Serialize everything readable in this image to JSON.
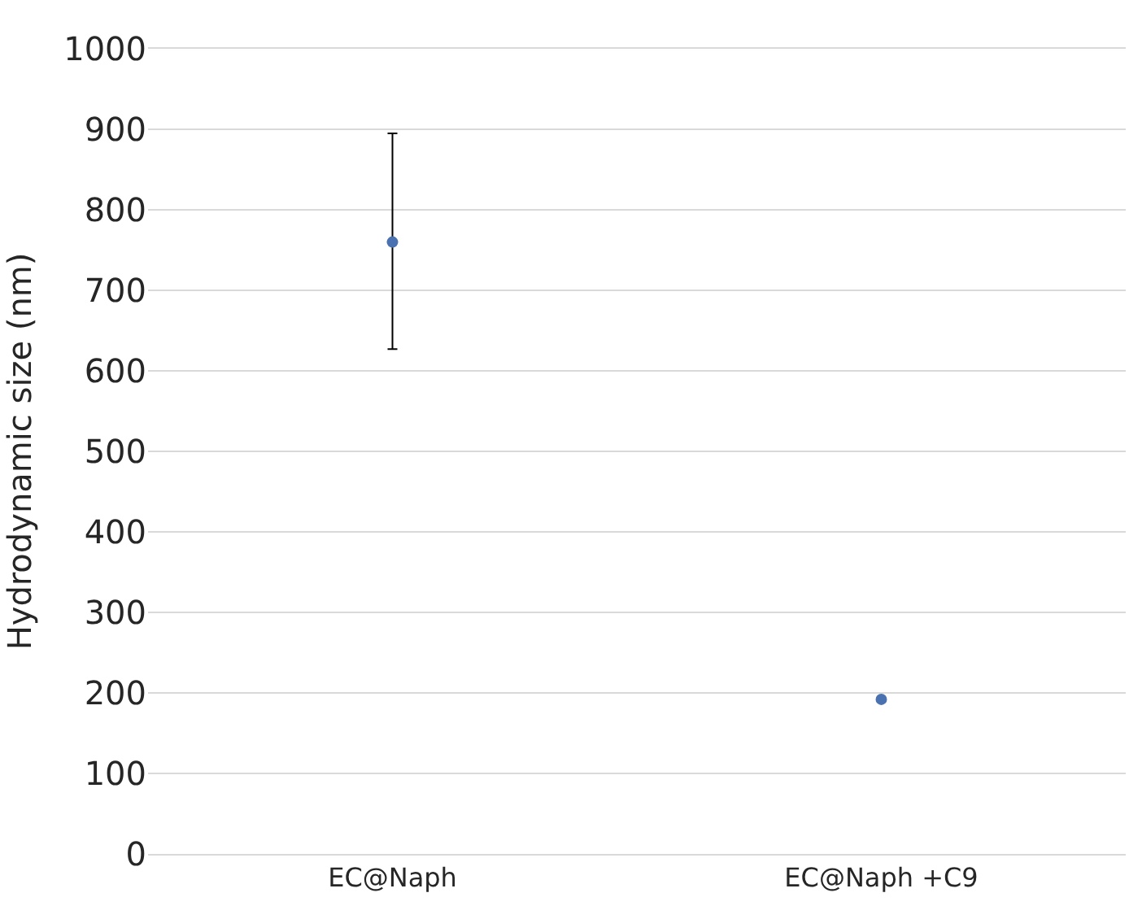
{
  "chart_data": {
    "type": "scatter",
    "ylabel": "Hydrodynamic size (nm)",
    "categories": [
      "EC@Naph",
      "EC@Naph +C9"
    ],
    "series": [
      {
        "color": "#4a72b0",
        "values": [
          760,
          192
        ],
        "errors": [
          [
            627,
            895
          ],
          null
        ]
      }
    ],
    "ylim": [
      0,
      1000
    ],
    "yticks": [
      0,
      100,
      200,
      300,
      400,
      500,
      600,
      700,
      800,
      900,
      1000
    ],
    "grid": "y",
    "marker": "circle"
  }
}
